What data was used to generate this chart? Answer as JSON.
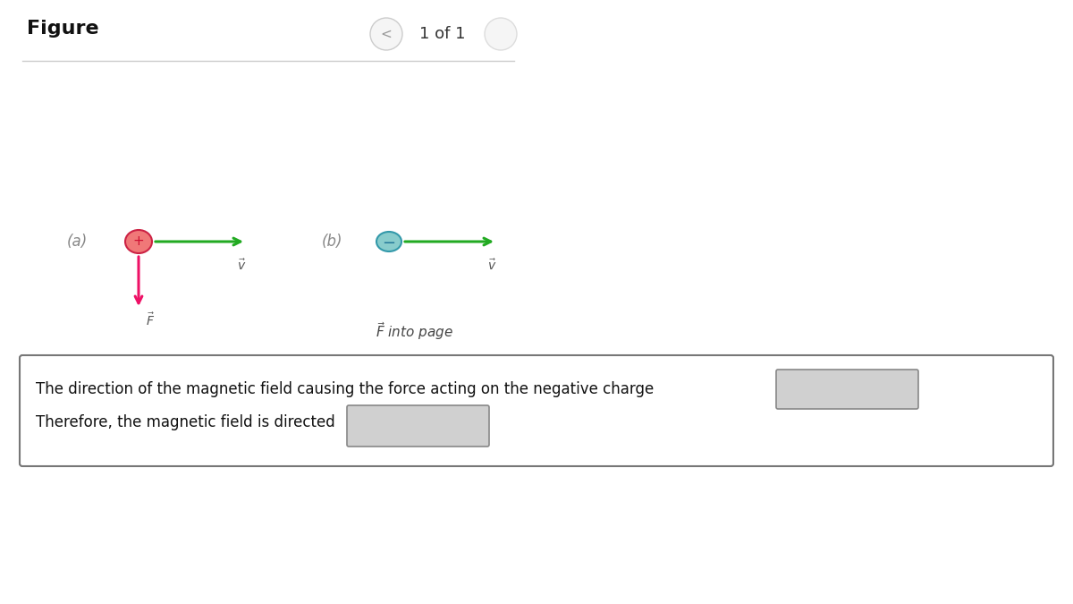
{
  "fig_width": 12.0,
  "fig_height": 6.75,
  "bg_color": "#ffffff",
  "header_text": "Figure",
  "header_nav": "1 of 1",
  "label_a": "(a)",
  "label_b": "(b)",
  "pos_charge_color": "#f07878",
  "neg_charge_color": "#88cccc",
  "velocity_color": "#22aa22",
  "force_color_a": "#ee1166",
  "text_color": "#444444",
  "v_label": "$\\vec{v}$",
  "F_label_a": "$\\vec{F}$",
  "F_label_b": "$\\vec{F}$ into page",
  "text_line1": "The direction of the magnetic field causing the force acting on the negative charge",
  "text_line2": "Therefore, the magnetic field is directed",
  "box_bg": "#d0d0d0",
  "box_border": "#888888",
  "outer_box_border": "#777777"
}
